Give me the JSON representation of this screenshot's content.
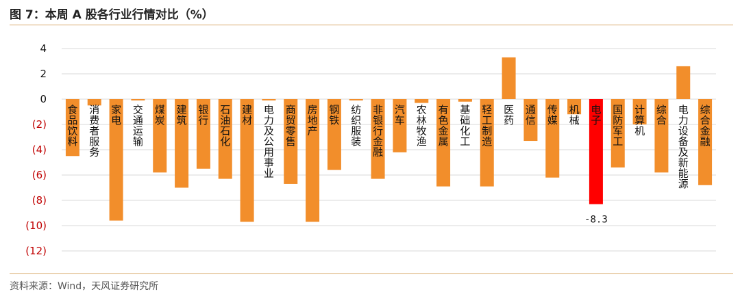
{
  "header": {
    "title": "图 7：本周 A 股各行业行情对比（%）"
  },
  "footer": {
    "source": "资料来源：Wind，天风证券研究所"
  },
  "colors": {
    "bar": "#f28e2b",
    "highlight": "#ff0000",
    "negative_tick": "#c00000",
    "positive_tick": "#111111",
    "rule": "#d9a96a"
  },
  "chart_data": {
    "type": "bar",
    "title": "图 7：本周 A 股各行业行情对比（%）",
    "ylim": [
      -12,
      4
    ],
    "yticks": [
      4,
      2,
      0,
      -2,
      -4,
      -6,
      -8,
      -10,
      -12
    ],
    "ytick_labels": [
      "4",
      "2",
      "0",
      "(2)",
      "(4)",
      "(6)",
      "(8)",
      "(10)",
      "(12)"
    ],
    "grid": true,
    "categories": [
      "食品饮料",
      "消费者服务",
      "家电",
      "交通运输",
      "煤炭",
      "建筑",
      "银行",
      "石油石化",
      "建材",
      "电力及公用事业",
      "商贸零售",
      "房地产",
      "钢铁",
      "纺织服装",
      "非银行金融",
      "汽车",
      "农林牧渔",
      "有色金属",
      "基础化工",
      "轻工制造",
      "医药",
      "通信",
      "传媒",
      "机械",
      "电子",
      "国防军工",
      "计算机",
      "综合",
      "电力设备及新能源",
      "综合金融"
    ],
    "values": [
      -4.5,
      -0.5,
      -9.6,
      -0.1,
      -5.8,
      -7.0,
      -5.5,
      -6.3,
      -9.7,
      -0.1,
      -6.7,
      -9.7,
      -5.6,
      -0.1,
      -6.3,
      -4.2,
      -0.3,
      -6.9,
      -0.2,
      -6.9,
      3.3,
      -3.3,
      -6.2,
      -1.2,
      -8.3,
      -5.4,
      -2.0,
      -5.8,
      2.6,
      -6.8
    ],
    "highlight_index": 24,
    "data_labels": [
      {
        "index": 24,
        "text": "-8.3"
      }
    ]
  }
}
